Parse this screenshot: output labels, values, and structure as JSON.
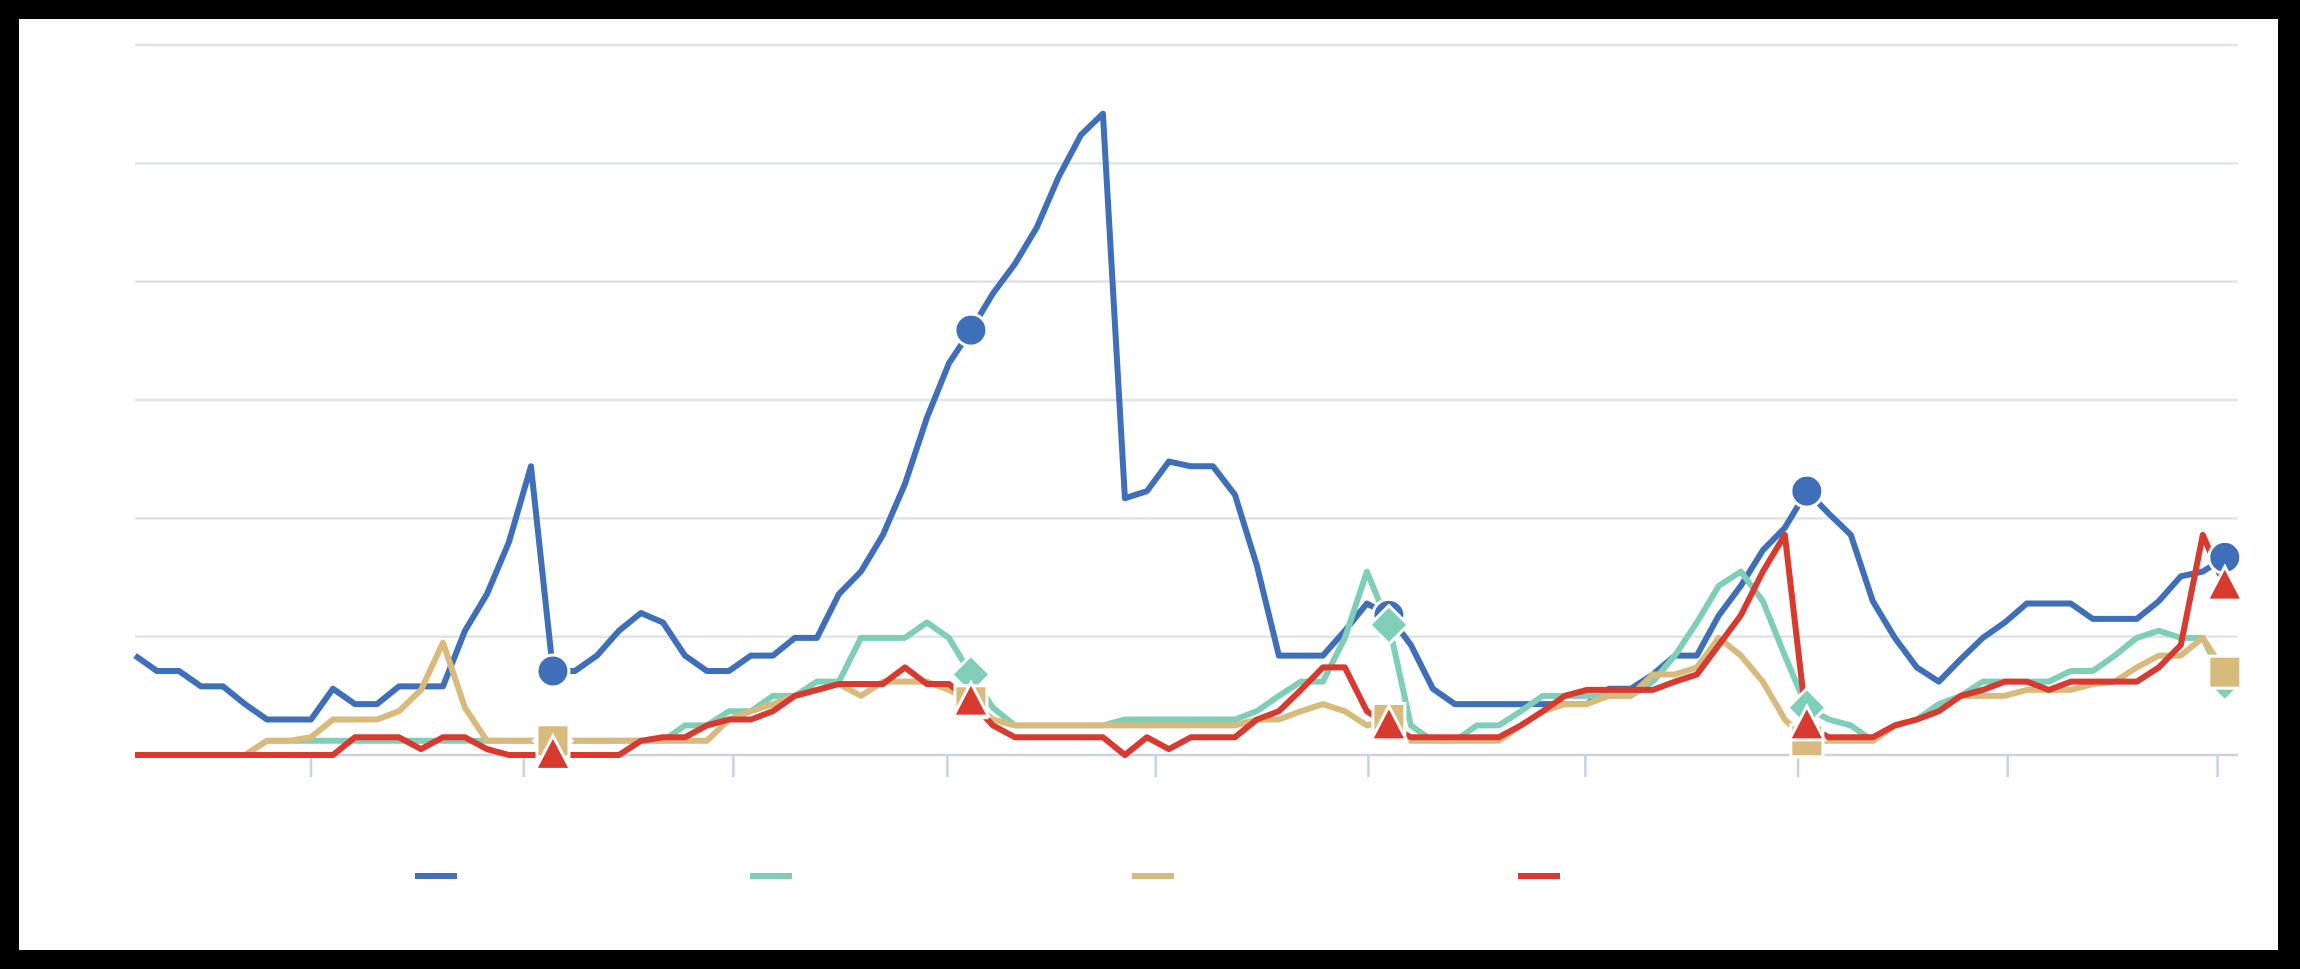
{
  "chart_data": {
    "type": "line",
    "xlim": [
      0,
      95.6
    ],
    "xticks": [
      8,
      17.67,
      27.2,
      36.93,
      46.4,
      56.07,
      65.93,
      75.6,
      85.13,
      94.67
    ],
    "ylim": [
      0,
      6
    ],
    "yticks": [
      0,
      1,
      2,
      3,
      4,
      5,
      6
    ],
    "grid": true,
    "legend": "bottom",
    "marker_indices": [
      19,
      38,
      57,
      76,
      95
    ],
    "series": [
      {
        "color": "#3f6fb8",
        "marker": "circle",
        "values": [
          0.84,
          0.71,
          0.71,
          0.58,
          0.58,
          0.43,
          0.3,
          0.3,
          0.3,
          0.56,
          0.43,
          0.43,
          0.58,
          0.58,
          0.58,
          1.05,
          1.36,
          1.8,
          2.44,
          0.71,
          0.71,
          0.84,
          1.05,
          1.2,
          1.12,
          0.84,
          0.71,
          0.71,
          0.84,
          0.84,
          0.99,
          0.99,
          1.36,
          1.55,
          1.86,
          2.29,
          2.85,
          3.31,
          3.59,
          3.9,
          4.15,
          4.46,
          4.89,
          5.24,
          5.42,
          2.17,
          2.23,
          2.48,
          2.44,
          2.44,
          2.2,
          1.6,
          0.84,
          0.84,
          0.84,
          1.05,
          1.28,
          1.18,
          0.93,
          0.56,
          0.43,
          0.43,
          0.43,
          0.43,
          0.43,
          0.43,
          0.43,
          0.56,
          0.56,
          0.68,
          0.84,
          0.84,
          1.18,
          1.43,
          1.73,
          1.92,
          2.23,
          2.04,
          1.86,
          1.3,
          0.99,
          0.74,
          0.62,
          0.81,
          0.99,
          1.12,
          1.28,
          1.28,
          1.28,
          1.15,
          1.15,
          1.15,
          1.3,
          1.51,
          1.55,
          1.67
        ]
      },
      {
        "color": "#7fcfb8",
        "marker": "diamond",
        "values": [
          0,
          0,
          0,
          0,
          0,
          0,
          0.12,
          0.12,
          0.12,
          0.12,
          0.12,
          0.12,
          0.12,
          0.12,
          0.12,
          0.12,
          0.12,
          0.12,
          0.12,
          0.12,
          0.12,
          0.12,
          0.12,
          0.12,
          0.12,
          0.25,
          0.25,
          0.37,
          0.37,
          0.5,
          0.5,
          0.62,
          0.62,
          0.99,
          0.99,
          0.99,
          1.12,
          0.99,
          0.68,
          0.4,
          0.25,
          0.25,
          0.25,
          0.25,
          0.25,
          0.3,
          0.3,
          0.3,
          0.3,
          0.3,
          0.3,
          0.37,
          0.5,
          0.62,
          0.62,
          0.99,
          1.55,
          1.1,
          0.25,
          0.12,
          0.12,
          0.25,
          0.25,
          0.37,
          0.5,
          0.5,
          0.5,
          0.5,
          0.5,
          0.62,
          0.84,
          1.12,
          1.43,
          1.55,
          1.3,
          0.84,
          0.4,
          0.3,
          0.25,
          0.12,
          0.25,
          0.3,
          0.43,
          0.5,
          0.62,
          0.62,
          0.62,
          0.62,
          0.71,
          0.71,
          0.84,
          0.99,
          1.05,
          0.99,
          0.99,
          0.62
        ]
      },
      {
        "color": "#d8bb7c",
        "marker": "square",
        "values": [
          0,
          0,
          0,
          0,
          0,
          0,
          0.12,
          0.12,
          0.15,
          0.3,
          0.3,
          0.3,
          0.37,
          0.55,
          0.95,
          0.4,
          0.12,
          0.12,
          0.12,
          0.12,
          0.12,
          0.12,
          0.12,
          0.12,
          0.12,
          0.12,
          0.12,
          0.3,
          0.37,
          0.43,
          0.5,
          0.55,
          0.6,
          0.5,
          0.62,
          0.62,
          0.62,
          0.55,
          0.45,
          0.3,
          0.25,
          0.25,
          0.25,
          0.25,
          0.25,
          0.25,
          0.25,
          0.25,
          0.25,
          0.25,
          0.25,
          0.3,
          0.3,
          0.37,
          0.43,
          0.37,
          0.25,
          0.3,
          0.12,
          0.12,
          0.12,
          0.12,
          0.12,
          0.25,
          0.37,
          0.43,
          0.43,
          0.5,
          0.5,
          0.68,
          0.68,
          0.74,
          0.99,
          0.84,
          0.62,
          0.3,
          0.12,
          0.12,
          0.12,
          0.12,
          0.25,
          0.3,
          0.37,
          0.5,
          0.5,
          0.5,
          0.55,
          0.55,
          0.55,
          0.6,
          0.62,
          0.74,
          0.84,
          0.84,
          0.99,
          0.7
        ]
      },
      {
        "color": "#d83a2f",
        "marker": "triangle",
        "values": [
          0,
          0,
          0,
          0,
          0,
          0,
          0,
          0,
          0,
          0,
          0.15,
          0.15,
          0.15,
          0.05,
          0.15,
          0.15,
          0.05,
          0,
          0,
          0,
          0,
          0,
          0,
          0.12,
          0.15,
          0.15,
          0.25,
          0.3,
          0.3,
          0.37,
          0.5,
          0.55,
          0.6,
          0.6,
          0.6,
          0.74,
          0.6,
          0.6,
          0.45,
          0.25,
          0.15,
          0.15,
          0.15,
          0.15,
          0.15,
          0,
          0.15,
          0.05,
          0.15,
          0.15,
          0.15,
          0.3,
          0.37,
          0.55,
          0.74,
          0.74,
          0.37,
          0.25,
          0.15,
          0.15,
          0.15,
          0.15,
          0.15,
          0.25,
          0.37,
          0.5,
          0.55,
          0.55,
          0.55,
          0.55,
          0.62,
          0.68,
          0.93,
          1.18,
          1.55,
          1.86,
          0.25,
          0.15,
          0.15,
          0.15,
          0.25,
          0.3,
          0.37,
          0.5,
          0.55,
          0.62,
          0.62,
          0.55,
          0.62,
          0.62,
          0.62,
          0.62,
          0.74,
          0.93,
          1.86,
          1.43
        ]
      }
    ]
  }
}
